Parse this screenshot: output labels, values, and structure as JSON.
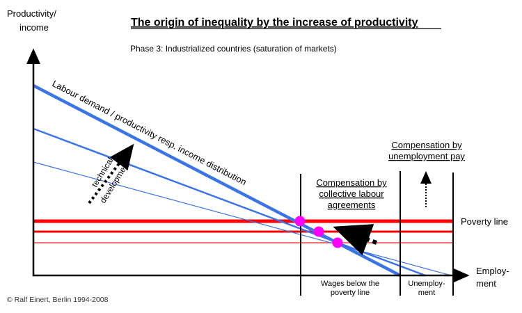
{
  "title": "The origin of inequality by the increase of productivity",
  "subtitle": "Phase 3: Industrialized countries (saturation of markets)",
  "y_axis_label": [
    "Productivity/",
    "income"
  ],
  "x_axis_label": [
    "Employ-",
    "ment"
  ],
  "curve_label": "Labour demand / productivity resp. income distribution",
  "technical_development": [
    "technical",
    "development"
  ],
  "poverty_line_label": "Poverty line",
  "compensation_collective": [
    "Compensation by",
    "collective labour",
    "agreements"
  ],
  "compensation_unemployment": [
    "Compensation by",
    "unemployment pay"
  ],
  "zone_wages": [
    "Wages below the",
    "poverty line"
  ],
  "zone_unemployment": [
    "Unemploy-",
    "ment"
  ],
  "copyright": "© Ralf Einert, Berlin 1994-2008",
  "colors": {
    "blue": "#3b73e8",
    "red": "#ff0000",
    "magenta": "#ff00ff"
  }
}
